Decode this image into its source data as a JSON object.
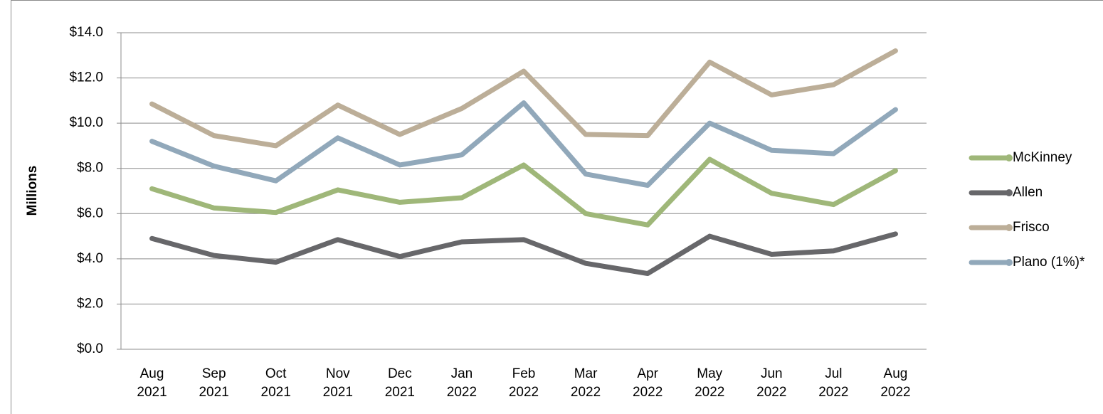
{
  "chart_data": {
    "type": "line",
    "y_label": "Millions",
    "categories": [
      "Aug 2021",
      "Sep 2021",
      "Oct 2021",
      "Nov 2021",
      "Dec 2021",
      "Jan 2022",
      "Feb 2022",
      "Mar 2022",
      "Apr 2022",
      "May 2022",
      "Jun 2022",
      "Jul 2022",
      "Aug 2022"
    ],
    "series": [
      {
        "name": "McKinney",
        "color": "#9fb779",
        "values": [
          7.1,
          6.25,
          6.05,
          7.05,
          6.5,
          6.7,
          8.15,
          6.0,
          5.5,
          8.4,
          6.9,
          6.4,
          7.9
        ]
      },
      {
        "name": "Allen",
        "color": "#67676a",
        "values": [
          4.9,
          4.15,
          3.85,
          4.85,
          4.1,
          4.75,
          4.85,
          3.8,
          3.35,
          5.0,
          4.2,
          4.35,
          5.1
        ]
      },
      {
        "name": "Frisco",
        "color": "#bcae98",
        "values": [
          10.85,
          9.45,
          9.0,
          10.8,
          9.5,
          10.65,
          12.3,
          9.5,
          9.45,
          12.7,
          11.25,
          11.7,
          13.2
        ]
      },
      {
        "name": "Plano (1%)*",
        "color": "#91a8ba",
        "values": [
          9.2,
          8.1,
          7.45,
          9.35,
          8.15,
          8.6,
          10.9,
          7.75,
          7.25,
          10.0,
          8.8,
          8.65,
          10.6
        ]
      }
    ],
    "ylim": [
      0,
      14
    ],
    "yticks": [
      {
        "value": 0,
        "label": "$0.0"
      },
      {
        "value": 2,
        "label": "$2.0"
      },
      {
        "value": 4,
        "label": "$4.0"
      },
      {
        "value": 6,
        "label": "$6.0"
      },
      {
        "value": 8,
        "label": "$8.0"
      },
      {
        "value": 10,
        "label": "$10.0"
      },
      {
        "value": 12,
        "label": "$12.0"
      },
      {
        "value": 14,
        "label": "$14.0"
      }
    ],
    "grid": true,
    "legend": "right"
  }
}
